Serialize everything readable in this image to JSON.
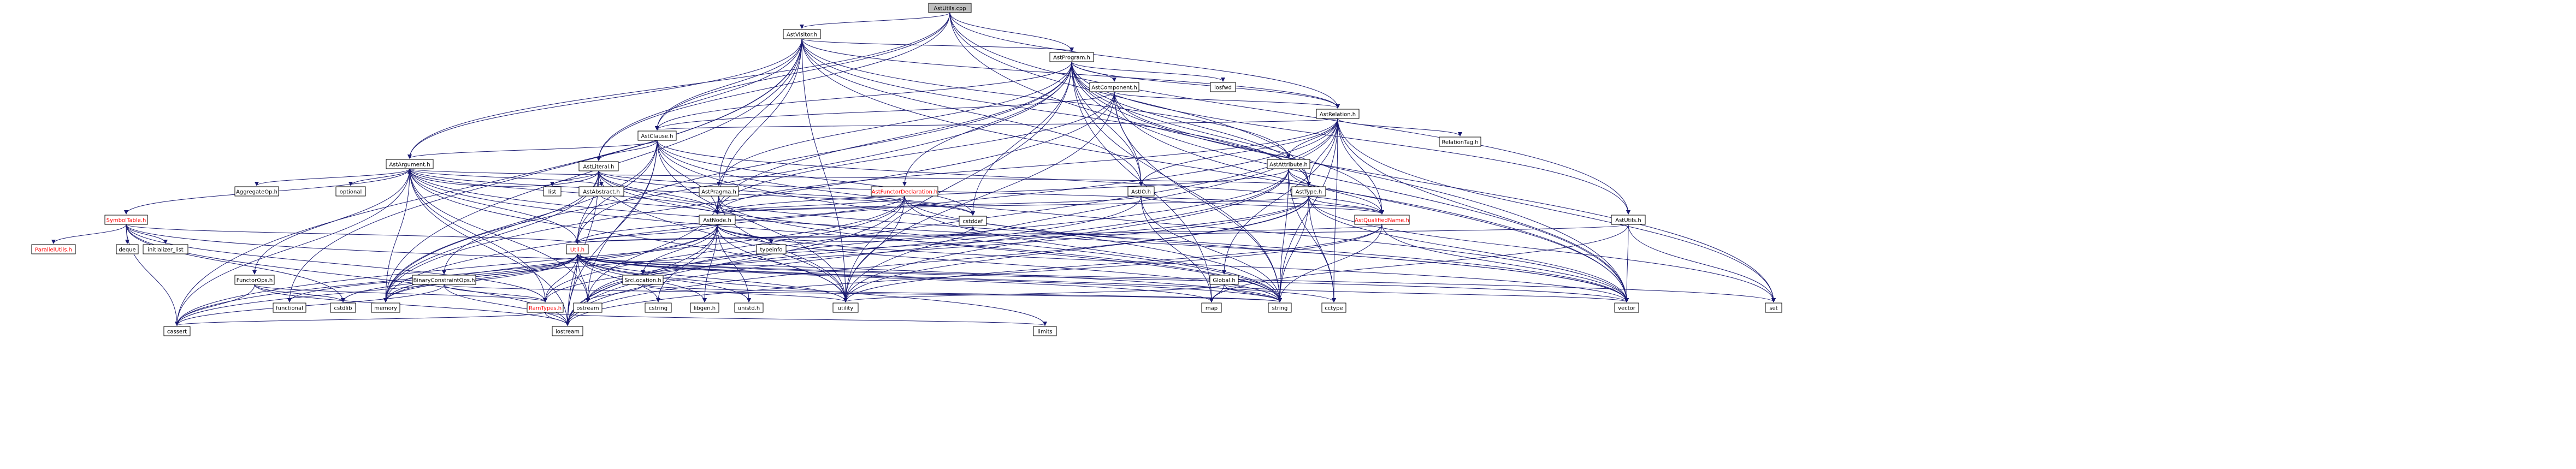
{
  "title": "AstUtils.cpp include dependency graph",
  "colors": {
    "edge": "#191970",
    "root_fill": "#bfbfbf",
    "box_border": "#000000",
    "red_label": "#ff0000"
  },
  "nodes": {
    "AstUtils_cpp": "AstUtils.cpp",
    "AstVisitor_h": "AstVisitor.h",
    "AstProgram_h": "AstProgram.h",
    "AstComponent_h": "AstComponent.h",
    "AstRelation_h": "AstRelation.h",
    "AstClause_h": "AstClause.h",
    "AstArgument_h": "AstArgument.h",
    "AstLiteral_h": "AstLiteral.h",
    "AstAbstract_h": "AstAbstract.h",
    "AstPragma_h": "AstPragma.h",
    "AstFunctorDeclaration_h": "AstFunctorDeclaration.h",
    "AstIO_h": "AstIO.h",
    "AstAttribute_h": "AstAttribute.h",
    "AstType_h": "AstType.h",
    "AstQualifiedName_h": "AstQualifiedName.h",
    "AstUtils_h": "AstUtils.h",
    "AstNode_h": "AstNode.h",
    "SymbolTable_h": "SymbolTable.h",
    "ParallelUtils_h": "ParallelUtils.h",
    "AggregateOp_h": "AggregateOp.h",
    "FunctorOps_h": "FunctorOps.h",
    "BinaryConstraintOps_h": "BinaryConstraintOps.h",
    "RamTypes_h": "RamTypes.h",
    "Util_h": "Util.h",
    "SrcLocation_h": "SrcLocation.h",
    "Global_h": "Global.h",
    "RelationTag_h": "RelationTag.h",
    "iosfwd": "iosfwd",
    "optional": "optional",
    "list": "list",
    "typeinfo": "typeinfo",
    "cstddef": "cstddef",
    "deque": "deque",
    "initializer_list": "initializer_list",
    "functional": "functional",
    "cstdlib": "cstdlib",
    "memory": "memory",
    "ostream": "ostream",
    "cstring": "cstring",
    "libgen_h": "libgen.h",
    "unistd_h": "unistd.h",
    "utility": "utility",
    "map": "map",
    "string": "string",
    "cctype": "cctype",
    "vector": "vector",
    "set": "set",
    "cassert": "cassert",
    "iostream": "iostream",
    "limits": "limits"
  }
}
